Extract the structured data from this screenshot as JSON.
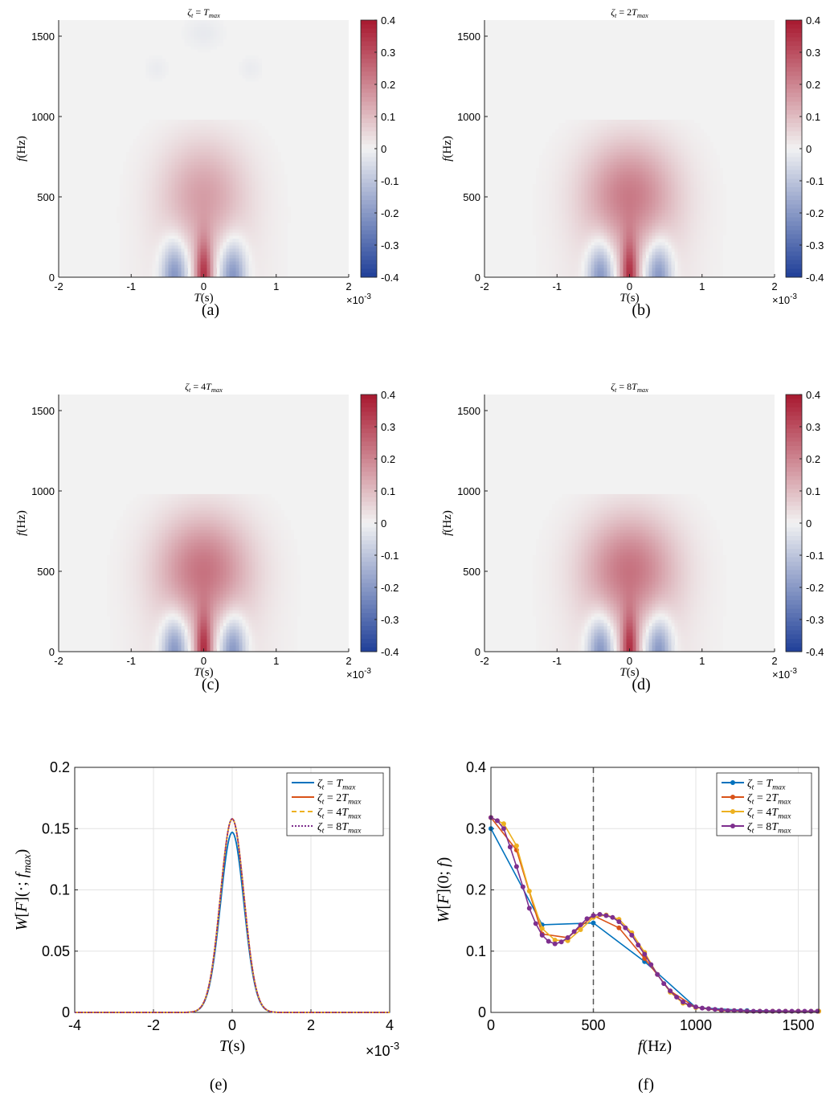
{
  "chart_data": [
    {
      "panel": "(a)",
      "type": "heatmap",
      "title": "ζt = Tmax",
      "xlabel": "T(s)",
      "ylabel": "f(Hz)",
      "x_exponent": "×10-3",
      "xlim": [
        -2,
        2
      ],
      "ylim": [
        0,
        1600
      ],
      "xticks": [
        "-2",
        "-1",
        "0",
        "1",
        "2"
      ],
      "yticks": [
        "0",
        "500",
        "1000",
        "1500"
      ],
      "colorbar": {
        "range": [
          -0.4,
          0.4
        ],
        "ticks": [
          "0.4",
          "0.3",
          "0.2",
          "0.1",
          "0",
          "-0.1",
          "-0.2",
          "-0.3",
          "-0.4"
        ],
        "low_color": "#1f3f99",
        "mid_color": "#f2f2f2",
        "high_color": "#a8182f"
      },
      "features": {
        "center_peak": 0.3,
        "side_lobes": -0.25,
        "side_lobe_time": 0.0004,
        "upper_lobe": 0.1,
        "envelope_half_width": 0.00105,
        "envelope_top": 970,
        "faint_negative_ripples": true
      }
    },
    {
      "panel": "(b)",
      "type": "heatmap",
      "title": "ζt = 2Tmax",
      "xlabel": "T(s)",
      "ylabel": "f(Hz)",
      "x_exponent": "×10-3",
      "xlim": [
        -2,
        2
      ],
      "ylim": [
        0,
        1600
      ],
      "xticks": [
        "-2",
        "-1",
        "0",
        "1",
        "2"
      ],
      "yticks": [
        "0",
        "500",
        "1000",
        "1500"
      ],
      "colorbar": {
        "range": [
          -0.4,
          0.4
        ],
        "ticks": [
          "0.4",
          "0.3",
          "0.2",
          "0.1",
          "0",
          "-0.1",
          "-0.2",
          "-0.3",
          "-0.4"
        ],
        "low_color": "#1f3f99",
        "mid_color": "#f2f2f2",
        "high_color": "#a8182f"
      },
      "features": {
        "center_peak": 0.3,
        "side_lobes": -0.25,
        "side_lobe_time": 0.0004,
        "upper_lobe": 0.15,
        "envelope_half_width": 0.00115,
        "envelope_top": 980,
        "faint_negative_ripples": false
      }
    },
    {
      "panel": "(c)",
      "type": "heatmap",
      "title": "ζt = 4Tmax",
      "xlabel": "T(s)",
      "ylabel": "f(Hz)",
      "x_exponent": "×10-3",
      "xlim": [
        -2,
        2
      ],
      "ylim": [
        0,
        1600
      ],
      "xticks": [
        "-2",
        "-1",
        "0",
        "1",
        "2"
      ],
      "yticks": [
        "0",
        "500",
        "1000",
        "1500"
      ],
      "colorbar": {
        "range": [
          -0.4,
          0.4
        ],
        "ticks": [
          "0.4",
          "0.3",
          "0.2",
          "0.1",
          "0",
          "-0.1",
          "-0.2",
          "-0.3",
          "-0.4"
        ],
        "low_color": "#1f3f99",
        "mid_color": "#f2f2f2",
        "high_color": "#a8182f"
      },
      "features": {
        "center_peak": 0.3,
        "side_lobes": -0.25,
        "side_lobe_time": 0.0004,
        "upper_lobe": 0.16,
        "envelope_half_width": 0.00115,
        "envelope_top": 980,
        "faint_negative_ripples": false
      }
    },
    {
      "panel": "(d)",
      "type": "heatmap",
      "title": "ζt = 8Tmax",
      "xlabel": "T(s)",
      "ylabel": "f(Hz)",
      "x_exponent": "×10-3",
      "xlim": [
        -2,
        2
      ],
      "ylim": [
        0,
        1600
      ],
      "xticks": [
        "-2",
        "-1",
        "0",
        "1",
        "2"
      ],
      "yticks": [
        "0",
        "500",
        "1000",
        "1500"
      ],
      "colorbar": {
        "range": [
          -0.4,
          0.4
        ],
        "ticks": [
          "0.4",
          "0.3",
          "0.2",
          "0.1",
          "0",
          "-0.1",
          "-0.2",
          "-0.3",
          "-0.4"
        ],
        "low_color": "#1f3f99",
        "mid_color": "#f2f2f2",
        "high_color": "#a8182f"
      },
      "features": {
        "center_peak": 0.3,
        "side_lobes": -0.25,
        "side_lobe_time": 0.0004,
        "upper_lobe": 0.16,
        "envelope_half_width": 0.00115,
        "envelope_top": 980,
        "faint_negative_ripples": false
      }
    },
    {
      "panel": "(e)",
      "type": "line",
      "xlabel": "T(s)",
      "ylabel": "W[F](·; fmax)",
      "x_exponent": "×10-3",
      "xlim": [
        -4,
        4
      ],
      "ylim": [
        0,
        0.2
      ],
      "xticks": [
        "-4",
        "-2",
        "0",
        "2",
        "4"
      ],
      "yticks": [
        "0",
        "0.05",
        "0.1",
        "0.15",
        "0.2"
      ],
      "grid": true,
      "legend_placement": "top-right",
      "shape": "gaussian",
      "sigma": 0.00042,
      "series": [
        {
          "name": "ζt = Tmax",
          "color": "#0072bd",
          "dash": "solid",
          "peak": 0.147
        },
        {
          "name": "ζt = 2Tmax",
          "color": "#d95319",
          "dash": "solid",
          "peak": 0.158
        },
        {
          "name": "ζt = 4Tmax",
          "color": "#edb120",
          "dash": "dashed",
          "peak": 0.158
        },
        {
          "name": "ζt = 8Tmax",
          "color": "#7e2f8e",
          "dash": "dotted",
          "peak": 0.158
        }
      ]
    },
    {
      "panel": "(f)",
      "type": "line",
      "xlabel": "f(Hz)",
      "ylabel": "W[F](0; f)",
      "xlim": [
        0,
        1600
      ],
      "ylim": [
        0,
        0.4
      ],
      "xticks": [
        "0",
        "500",
        "1000",
        "1500"
      ],
      "yticks": [
        "0",
        "0.1",
        "0.2",
        "0.3",
        "0.4"
      ],
      "grid": true,
      "legend_placement": "top-right",
      "vline_x": 500,
      "series": [
        {
          "name": "ζt = Tmax",
          "color": "#0072bd",
          "x": [
            0,
            250,
            500,
            750,
            1000,
            1250,
            1500,
            1600
          ],
          "y": [
            0.3,
            0.143,
            0.146,
            0.083,
            0.008,
            0.003,
            0.002,
            0.002
          ]
        },
        {
          "name": "ζt = 2Tmax",
          "color": "#d95319",
          "x": [
            0,
            125,
            250,
            375,
            500,
            625,
            750,
            875,
            1000,
            1125,
            1250,
            1375,
            1500,
            1600
          ],
          "y": [
            0.318,
            0.265,
            0.128,
            0.122,
            0.158,
            0.138,
            0.088,
            0.035,
            0.008,
            0.003,
            0.002,
            0.002,
            0.002,
            0.002
          ]
        },
        {
          "name": "ζt = 4Tmax",
          "color": "#edb120",
          "x": [
            0,
            62.5,
            125,
            187.5,
            250,
            312.5,
            375,
            437.5,
            500,
            562.5,
            625,
            687.5,
            750,
            812.5,
            875,
            937.5,
            1000,
            1062.5,
            1125,
            1187.5,
            1250,
            1312.5,
            1375,
            1437.5,
            1500,
            1562.5,
            1600
          ],
          "y": [
            0.318,
            0.308,
            0.272,
            0.198,
            0.137,
            0.118,
            0.117,
            0.135,
            0.155,
            0.159,
            0.152,
            0.13,
            0.098,
            0.062,
            0.033,
            0.015,
            0.008,
            0.006,
            0.004,
            0.003,
            0.002,
            0.002,
            0.002,
            0.002,
            0.002,
            0.002,
            0.002
          ]
        },
        {
          "name": "ζt = 8Tmax",
          "color": "#7e2f8e",
          "x": [
            0,
            31.25,
            62.5,
            93.75,
            125,
            156.25,
            187.5,
            218.75,
            250,
            281.25,
            312.5,
            343.75,
            375,
            406.25,
            437.5,
            468.75,
            500,
            531.25,
            562.5,
            593.75,
            625,
            656.25,
            687.5,
            718.75,
            750,
            781.25,
            812.5,
            843.75,
            875,
            906.25,
            937.5,
            968.75,
            1000,
            1031.25,
            1062.5,
            1093.75,
            1125,
            1156.25,
            1187.5,
            1218.75,
            1250,
            1281.25,
            1312.5,
            1343.75,
            1375,
            1406.25,
            1437.5,
            1468.75,
            1500,
            1531.25,
            1562.5,
            1593.75
          ],
          "y": [
            0.318,
            0.313,
            0.3,
            0.27,
            0.238,
            0.205,
            0.17,
            0.145,
            0.126,
            0.116,
            0.112,
            0.115,
            0.122,
            0.132,
            0.143,
            0.153,
            0.158,
            0.16,
            0.158,
            0.155,
            0.148,
            0.138,
            0.126,
            0.11,
            0.095,
            0.078,
            0.062,
            0.047,
            0.035,
            0.025,
            0.017,
            0.012,
            0.009,
            0.007,
            0.006,
            0.005,
            0.004,
            0.003,
            0.003,
            0.003,
            0.002,
            0.002,
            0.002,
            0.002,
            0.002,
            0.002,
            0.002,
            0.002,
            0.002,
            0.002,
            0.002,
            0.002
          ]
        }
      ]
    }
  ]
}
